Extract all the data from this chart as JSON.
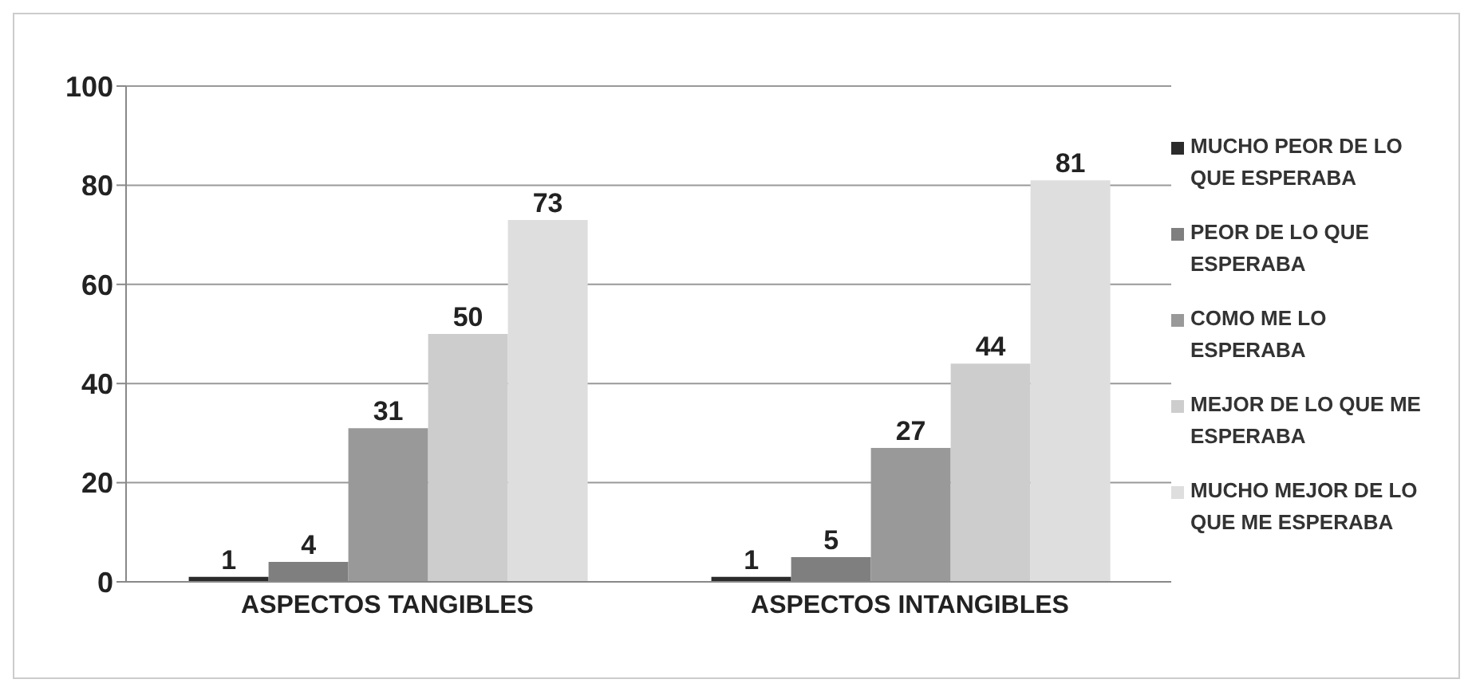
{
  "chart_data": {
    "type": "bar",
    "categories": [
      "ASPECTOS TANGIBLES",
      "ASPECTOS INTANGIBLES"
    ],
    "series": [
      {
        "name": "MUCHO PEOR DE LO QUE ESPERABA",
        "color": "#2b2b2b",
        "values": [
          1,
          1
        ]
      },
      {
        "name": "PEOR DE LO QUE ESPERABA",
        "color": "#7f7f7f",
        "values": [
          4,
          5
        ]
      },
      {
        "name": "COMO ME LO ESPERABA",
        "color": "#999999",
        "values": [
          31,
          27
        ]
      },
      {
        "name": "MEJOR DE LO QUE ME ESPERABA",
        "color": "#cdcdcd",
        "values": [
          50,
          44
        ]
      },
      {
        "name": "MUCHO MEJOR DE LO QUE ME ESPERABA",
        "color": "#dedede",
        "values": [
          73,
          81
        ]
      }
    ],
    "ylim": [
      0,
      100
    ],
    "yticks": [
      0,
      20,
      40,
      60,
      80,
      100
    ],
    "grid": "y",
    "legend": "right",
    "data_labels": true
  }
}
